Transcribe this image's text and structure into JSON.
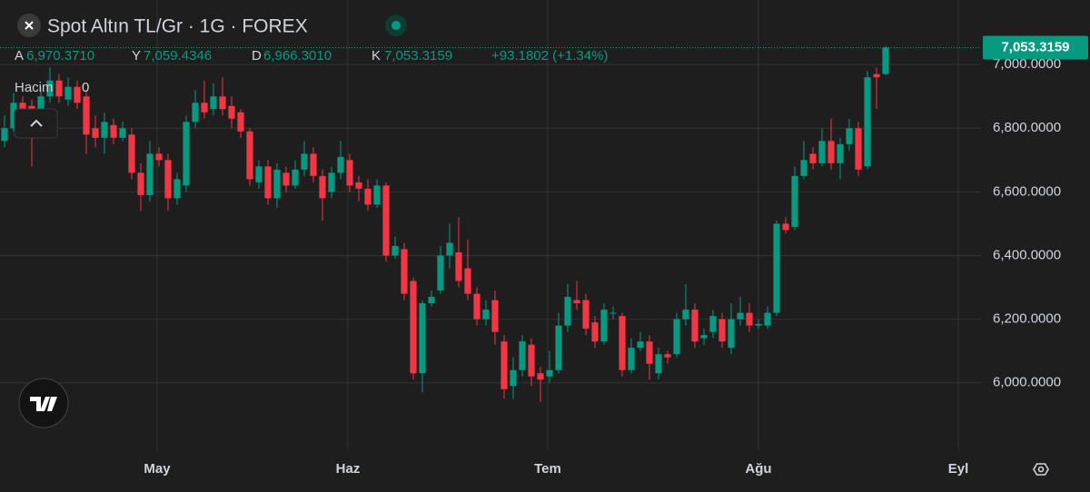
{
  "chart_data": {
    "type": "candlestick",
    "title": "Spot Altın TL/Gr · 1G · FOREX",
    "ohlc_legend": {
      "open_label": "A",
      "open": "6,970.3710",
      "high_label": "Y",
      "high": "7,059.4346",
      "low_label": "D",
      "low": "6,966.3010",
      "close_label": "K",
      "close": "7,053.3159",
      "change": "+93.1802 (+1.34%)"
    },
    "volume_label": "Hacim",
    "volume_value": "0",
    "last_price": {
      "value": 7053.3159,
      "label": "7,053.3159"
    },
    "up_color": "#089981",
    "down_color": "#f23645",
    "grid": true,
    "open": [
      6760,
      6800,
      6880,
      6870,
      6830,
      6900,
      6950,
      6890,
      6930,
      6900,
      6800,
      6770,
      6810,
      6770,
      6780,
      6660,
      6590,
      6720,
      6700,
      6580,
      6620,
      6820,
      6880,
      6860,
      6900,
      6870,
      6850,
      6790,
      6630,
      6680,
      6580,
      6660,
      6620,
      6670,
      6720,
      6650,
      6600,
      6660,
      6700,
      6630,
      6610,
      6560,
      6620,
      6400,
      6420,
      6320,
      6030,
      6250,
      6290,
      6400,
      6410,
      6360,
      6280,
      6200,
      6260,
      6130,
      5990,
      6040,
      6120,
      6030,
      6020,
      6040,
      6180,
      6260,
      6260,
      6190,
      6130,
      6220,
      6210,
      6040,
      6110,
      6130,
      6030,
      6090,
      6090,
      6200,
      6230,
      6140,
      6160,
      6200,
      6110,
      6200,
      6220,
      6180,
      6180,
      6220,
      6500,
      6490,
      6650,
      6720,
      6690,
      6760,
      6690,
      6750,
      6800,
      6680,
      6970,
      6970.371
    ],
    "high": [
      6840,
      6910,
      6900,
      6890,
      6930,
      6990,
      6970,
      6960,
      6950,
      6920,
      6840,
      6850,
      6830,
      6820,
      6800,
      6690,
      6760,
      6740,
      6720,
      6660,
      6840,
      6920,
      6950,
      6940,
      6960,
      6900,
      6860,
      6800,
      6700,
      6700,
      6690,
      6680,
      6700,
      6760,
      6740,
      6670,
      6680,
      6760,
      6720,
      6650,
      6640,
      6640,
      6630,
      6460,
      6440,
      6330,
      6260,
      6290,
      6430,
      6500,
      6520,
      6450,
      6300,
      6260,
      6290,
      6150,
      6080,
      6150,
      6140,
      6050,
      6100,
      6220,
      6310,
      6320,
      6280,
      6210,
      6250,
      6240,
      6220,
      6140,
      6160,
      6150,
      6110,
      6100,
      6220,
      6310,
      6250,
      6170,
      6230,
      6220,
      6250,
      6270,
      6250,
      6200,
      6240,
      6510,
      6520,
      6680,
      6760,
      6740,
      6800,
      6830,
      6770,
      6830,
      6820,
      6980,
      6990,
      7059.4346
    ],
    "low": [
      6740,
      6790,
      6840,
      6680,
      6820,
      6880,
      6880,
      6870,
      6860,
      6720,
      6740,
      6720,
      6750,
      6760,
      6640,
      6540,
      6570,
      6680,
      6540,
      6560,
      6600,
      6800,
      6830,
      6840,
      6840,
      6800,
      6770,
      6620,
      6610,
      6560,
      6550,
      6600,
      6610,
      6650,
      6630,
      6510,
      6580,
      6640,
      6600,
      6570,
      6540,
      6550,
      6380,
      6390,
      6260,
      6010,
      5970,
      6240,
      6280,
      6360,
      6300,
      6260,
      6180,
      6180,
      6120,
      5950,
      5950,
      6020,
      5990,
      5940,
      6000,
      6030,
      6160,
      6230,
      6150,
      6110,
      6120,
      6200,
      6020,
      6030,
      6100,
      6010,
      6010,
      6060,
      6080,
      6180,
      6110,
      6120,
      6140,
      6110,
      6090,
      6180,
      6160,
      6170,
      6170,
      6210,
      6470,
      6480,
      6640,
      6670,
      6680,
      6670,
      6640,
      6730,
      6650,
      6670,
      6860,
      6966.301
    ],
    "close": [
      6800,
      6880,
      6860,
      6830,
      6900,
      6950,
      6900,
      6930,
      6880,
      6780,
      6770,
      6820,
      6770,
      6800,
      6660,
      6590,
      6720,
      6700,
      6580,
      6640,
      6820,
      6880,
      6850,
      6900,
      6860,
      6830,
      6790,
      6640,
      6680,
      6580,
      6670,
      6620,
      6670,
      6720,
      6650,
      6580,
      6660,
      6710,
      6620,
      6610,
      6560,
      6620,
      6400,
      6430,
      6280,
      6030,
      6250,
      6270,
      6400,
      6440,
      6320,
      6280,
      6200,
      6230,
      6160,
      5980,
      6040,
      6130,
      6020,
      6010,
      6040,
      6180,
      6270,
      6250,
      6170,
      6130,
      6230,
      6220,
      6040,
      6110,
      6130,
      6060,
      6090,
      6080,
      6200,
      6230,
      6130,
      6150,
      6210,
      6130,
      6200,
      6220,
      6180,
      6185,
      6220,
      6500,
      6480,
      6650,
      6700,
      6690,
      6760,
      6690,
      6750,
      6800,
      6670,
      6960,
      6960,
      7053.3159
    ],
    "xlim": [
      -0.5,
      107.5
    ],
    "xticks": [
      {
        "value": 16.8,
        "label": "May"
      },
      {
        "value": 37.8,
        "label": "Haz"
      },
      {
        "value": 59.8,
        "label": "Tem"
      },
      {
        "value": 83,
        "label": "Ağu"
      },
      {
        "value": 105,
        "label": "Eyl"
      }
    ],
    "ylim": [
      5791,
      7203
    ],
    "yticks": [
      {
        "value": 6000,
        "label": "6,000.0000"
      },
      {
        "value": 6200,
        "label": "6,200.0000"
      },
      {
        "value": 6400,
        "label": "6,400.0000"
      },
      {
        "value": 6600,
        "label": "6,600.0000"
      },
      {
        "value": 6800,
        "label": "6,800.0000"
      },
      {
        "value": 7000,
        "label": "7,000.0000"
      }
    ]
  }
}
